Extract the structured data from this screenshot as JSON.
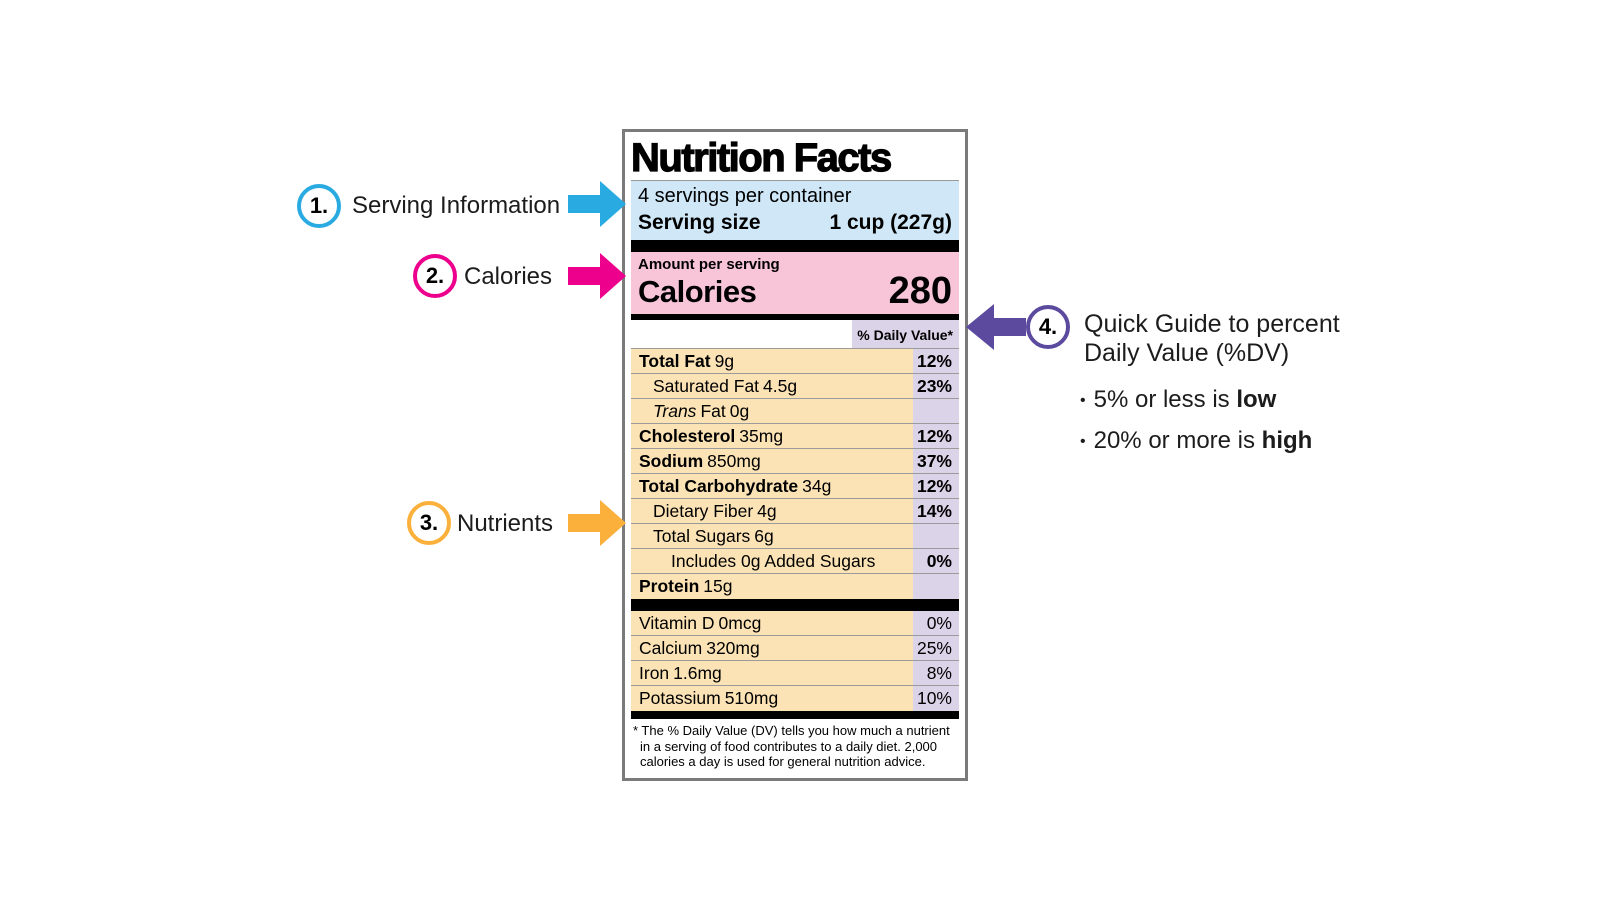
{
  "colors": {
    "step1_accent": "#29abe2",
    "step2_accent": "#ec008c",
    "step3_accent": "#fbb03b",
    "step4_accent": "#5b4a9e",
    "serving_band_bg": "#cfe7f7",
    "calories_band_bg": "#f7c4d8",
    "nutrients_bg": "#fbe3b5",
    "dv_column_bg": "#dbd3e8"
  },
  "annotations": {
    "item1": {
      "number": "1.",
      "label": "Serving Information"
    },
    "item2": {
      "number": "2.",
      "label": "Calories"
    },
    "item3": {
      "number": "3.",
      "label": "Nutrients"
    },
    "item4": {
      "number": "4.",
      "heading_line1": "Quick Guide to percent",
      "heading_line2": "Daily Value (%DV)",
      "bullets": [
        {
          "dot": "•",
          "prefix": "5% or less is ",
          "bold": "low"
        },
        {
          "dot": "•",
          "prefix": "20% or more is ",
          "bold": "high"
        }
      ]
    }
  },
  "label": {
    "title": "Nutrition Facts",
    "servings_per_container": "4 servings per container",
    "serving_size_label": "Serving size",
    "serving_size_value": "1 cup (227g)",
    "amount_per_serving": "Amount per serving",
    "calories_label": "Calories",
    "calories_value": "280",
    "dv_header": "% Daily Value*",
    "nutrients": [
      {
        "name": "Total Fat",
        "amount": "9g",
        "dv": "12%"
      },
      {
        "name": "Saturated Fat",
        "amount": "4.5g",
        "dv": "23%"
      },
      {
        "name_italic": "Trans",
        "name": "Fat",
        "amount": "0g",
        "dv": ""
      },
      {
        "name": "Cholesterol",
        "amount": "35mg",
        "dv": "12%"
      },
      {
        "name": "Sodium",
        "amount": "850mg",
        "dv": "37%"
      },
      {
        "name": "Total Carbohydrate",
        "amount": "34g",
        "dv": "12%"
      },
      {
        "name": "Dietary Fiber",
        "amount": "4g",
        "dv": "14%"
      },
      {
        "name": "Total Sugars",
        "amount": "6g",
        "dv": ""
      },
      {
        "name": "Includes 0g Added Sugars",
        "amount": "",
        "dv": "0%"
      },
      {
        "name": "Protein",
        "amount": "15g",
        "dv": ""
      }
    ],
    "vitamins": [
      {
        "name": "Vitamin D",
        "amount": "0mcg",
        "dv": "0%"
      },
      {
        "name": "Calcium",
        "amount": "320mg",
        "dv": "25%"
      },
      {
        "name": "Iron",
        "amount": "1.6mg",
        "dv": "8%"
      },
      {
        "name": "Potassium",
        "amount": "510mg",
        "dv": "10%"
      }
    ],
    "footnote": "* The % Daily Value (DV) tells you how much a nutrient in a serving of food contributes to a daily diet. 2,000 calories a day is used for general nutrition advice."
  }
}
